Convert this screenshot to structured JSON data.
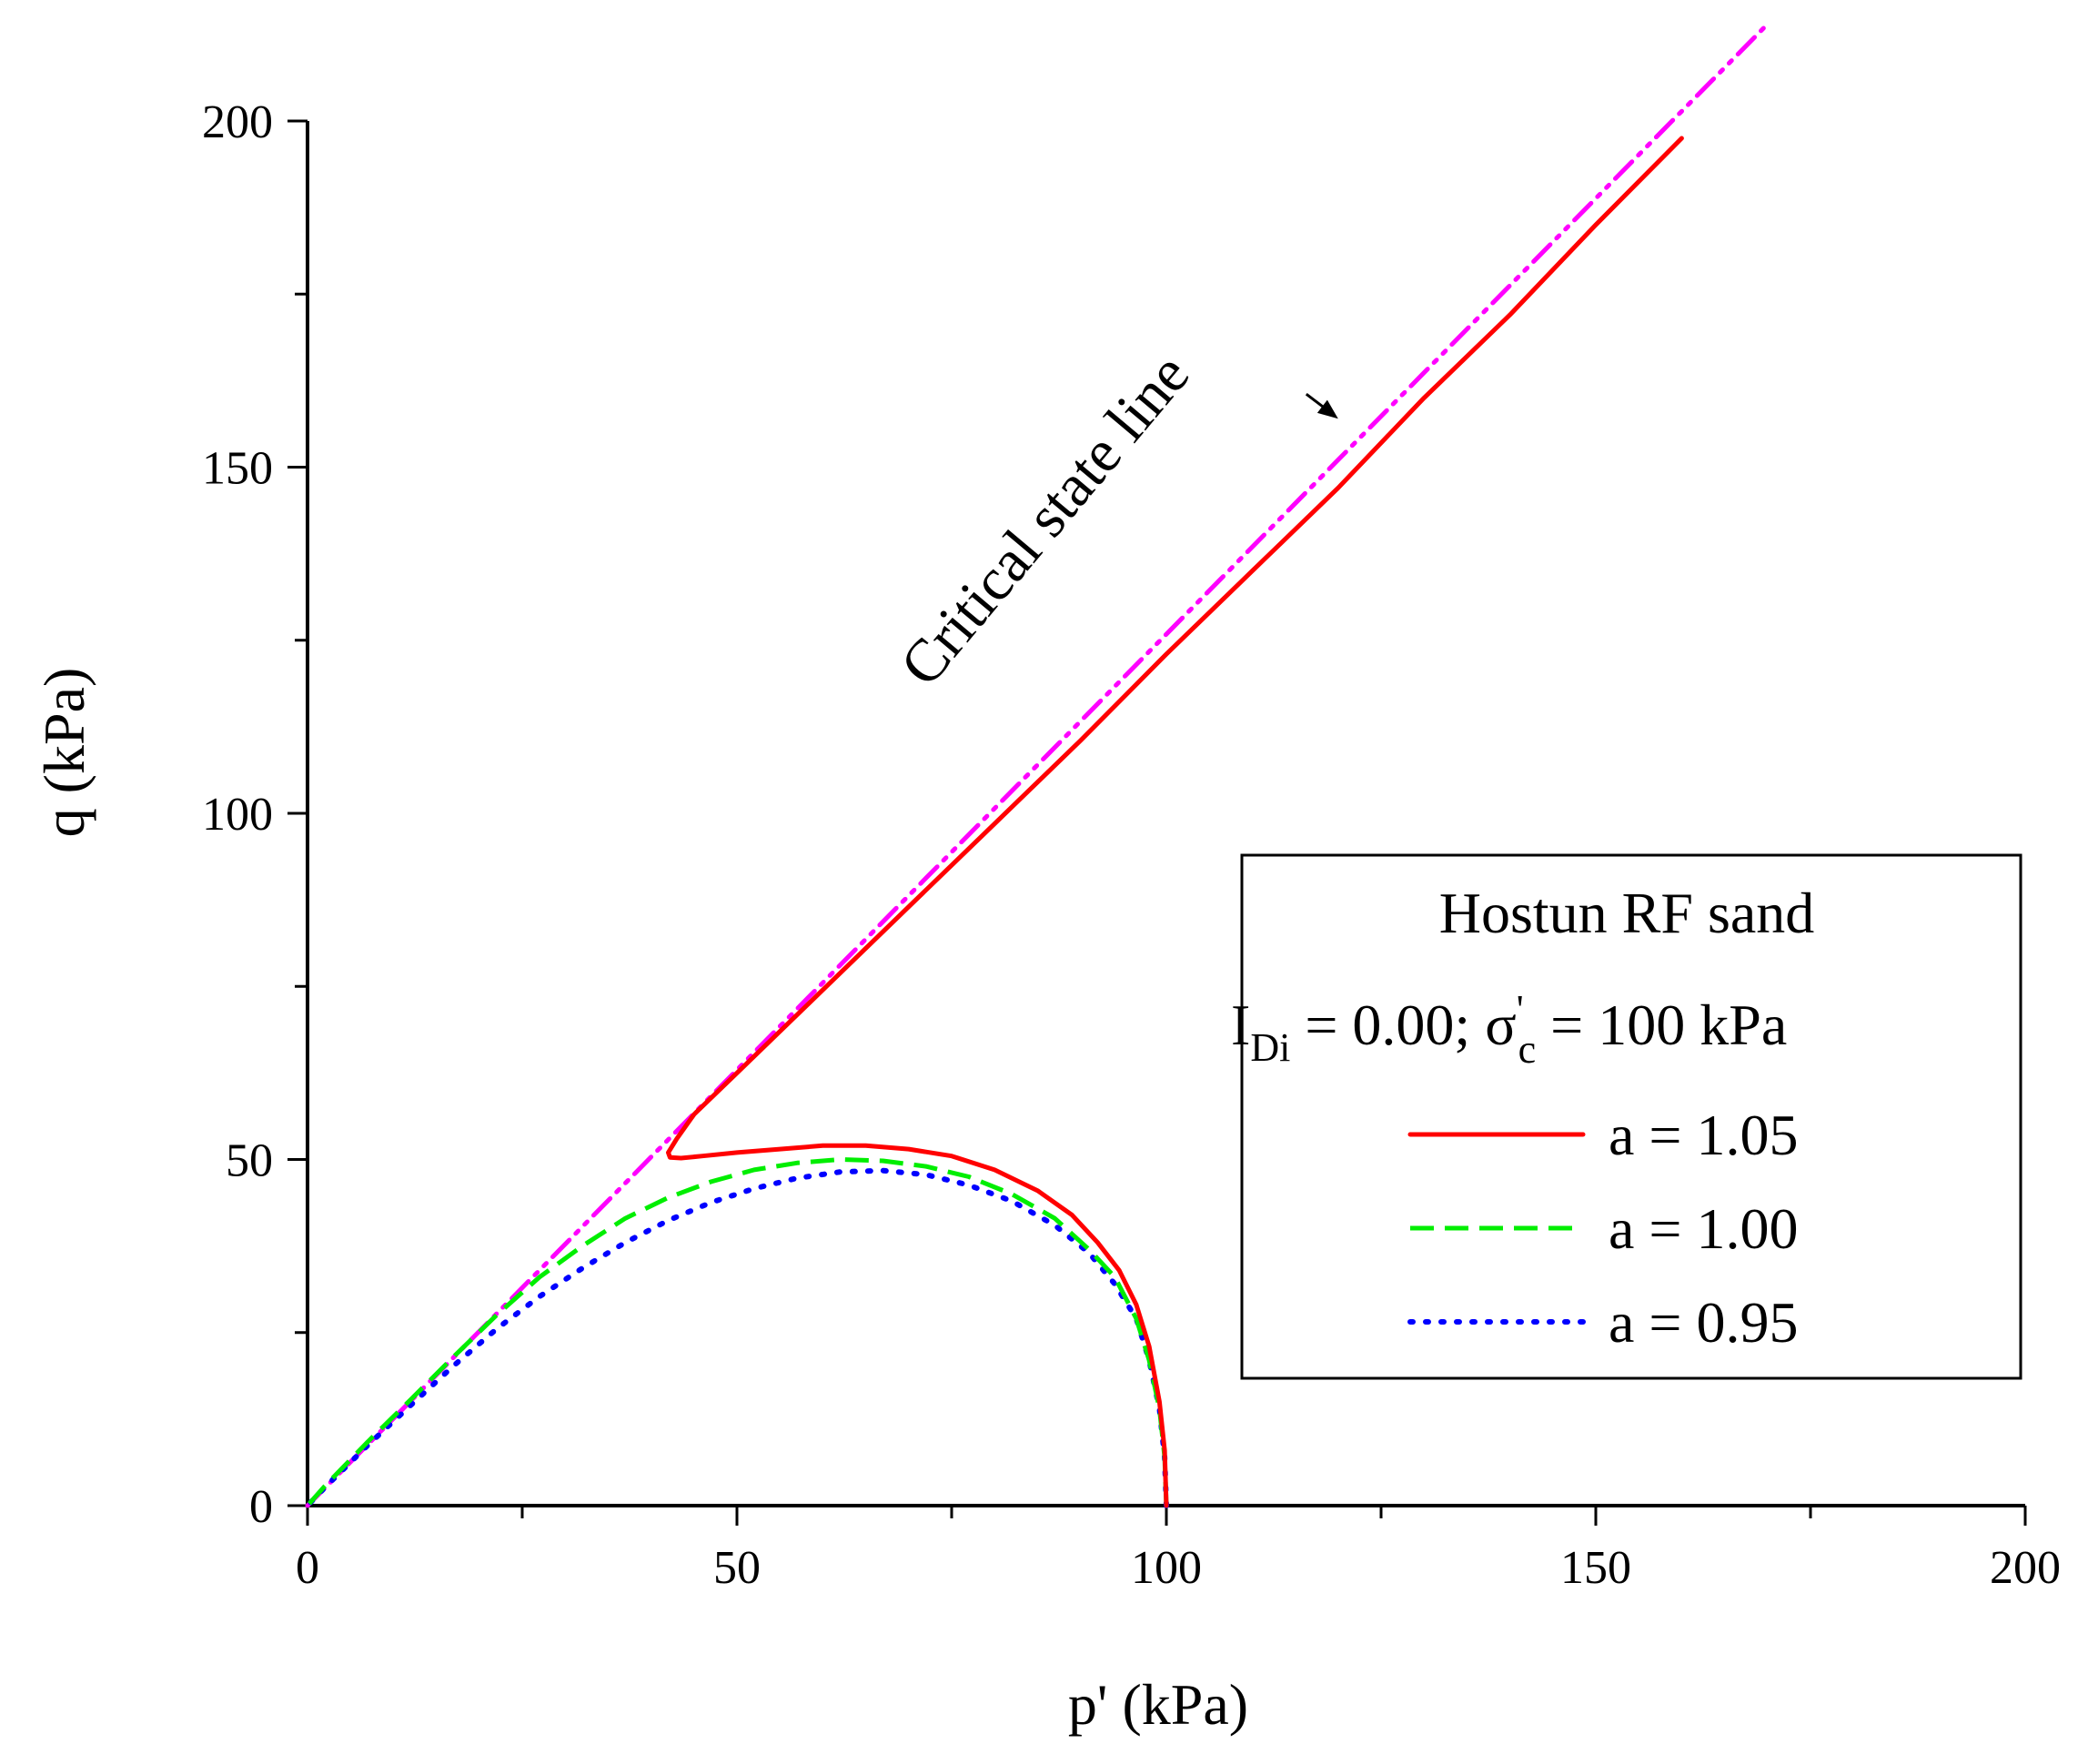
{
  "chart_data": {
    "type": "line",
    "title": "",
    "xlabel": "p' (kPa)",
    "ylabel": "q (kPa)",
    "xlim": [
      0,
      200
    ],
    "ylim": [
      0,
      200
    ],
    "xticks": [
      0,
      50,
      100,
      150,
      200
    ],
    "yticks": [
      0,
      50,
      100,
      150,
      200
    ],
    "grid": false,
    "legend_position": "center-right",
    "legend": {
      "title_line1": "Hostun RF sand",
      "title_line2": {
        "sym1": "I",
        "sub1": "Di",
        "mid": " = 0.00; σ",
        "sup": "'",
        "sub2": "c",
        "end": " = 100 kPa"
      }
    },
    "annotation": {
      "text": "Critical state line",
      "arrow_target": [
        120,
        157
      ]
    },
    "series": [
      {
        "name": "Critical state line",
        "in_legend": false,
        "color": "#ff00ff",
        "dash": "dashdotdot",
        "x": [
          0,
          170
        ],
        "y": [
          0,
          214
        ]
      },
      {
        "name": "a = 1.05",
        "in_legend": true,
        "color": "#ff0000",
        "dash": "solid",
        "x": [
          100,
          99.8,
          99.2,
          98,
          96.5,
          94.5,
          92,
          89,
          85,
          80,
          75,
          70,
          65,
          60,
          55,
          50,
          46,
          43.5,
          42.2,
          42,
          43,
          45,
          50,
          60,
          70,
          80,
          90,
          100,
          110,
          120,
          130,
          140,
          150,
          160
        ],
        "y": [
          0,
          8,
          15,
          23,
          29,
          34,
          38,
          42,
          45.5,
          48.5,
          50.5,
          51.5,
          52,
          52,
          51.5,
          51,
          50.5,
          50.2,
          50.3,
          51,
          53,
          56.5,
          62.5,
          74.5,
          86.5,
          98.5,
          110.5,
          123,
          135,
          147,
          160,
          172,
          185,
          197.5
        ]
      },
      {
        "name": "a = 1.00",
        "in_legend": true,
        "color": "#00ee00",
        "dash": "dashed",
        "x": [
          100,
          99.8,
          99.2,
          98,
          96.5,
          94,
          91,
          87,
          82,
          77,
          72,
          67,
          62,
          57,
          52,
          47,
          42,
          37,
          32,
          27,
          22,
          17,
          12,
          7,
          2,
          0
        ],
        "y": [
          0,
          7,
          14,
          21,
          27,
          33,
          37,
          41.5,
          45,
          47.5,
          49,
          49.8,
          50,
          49.5,
          48.5,
          46.8,
          44.5,
          41.5,
          37.5,
          33,
          27.5,
          21.5,
          15.3,
          9.2,
          2.8,
          0
        ]
      },
      {
        "name": "a = 0.95",
        "in_legend": true,
        "color": "#0000ff",
        "dash": "dotted",
        "x": [
          100,
          99.8,
          99.2,
          98,
          96.5,
          94,
          91,
          87,
          82,
          77,
          72,
          67,
          62,
          57,
          52,
          47,
          42,
          37,
          32,
          27,
          22,
          17,
          12,
          7,
          2,
          0
        ],
        "y": [
          0,
          7,
          14,
          21,
          27,
          32,
          36.5,
          40.5,
          44,
          46.3,
          47.8,
          48.4,
          48.2,
          47.3,
          45.8,
          43.8,
          41.2,
          38,
          34.3,
          30.2,
          25.5,
          20.2,
          14.5,
          8.7,
          2.6,
          0
        ]
      }
    ]
  }
}
